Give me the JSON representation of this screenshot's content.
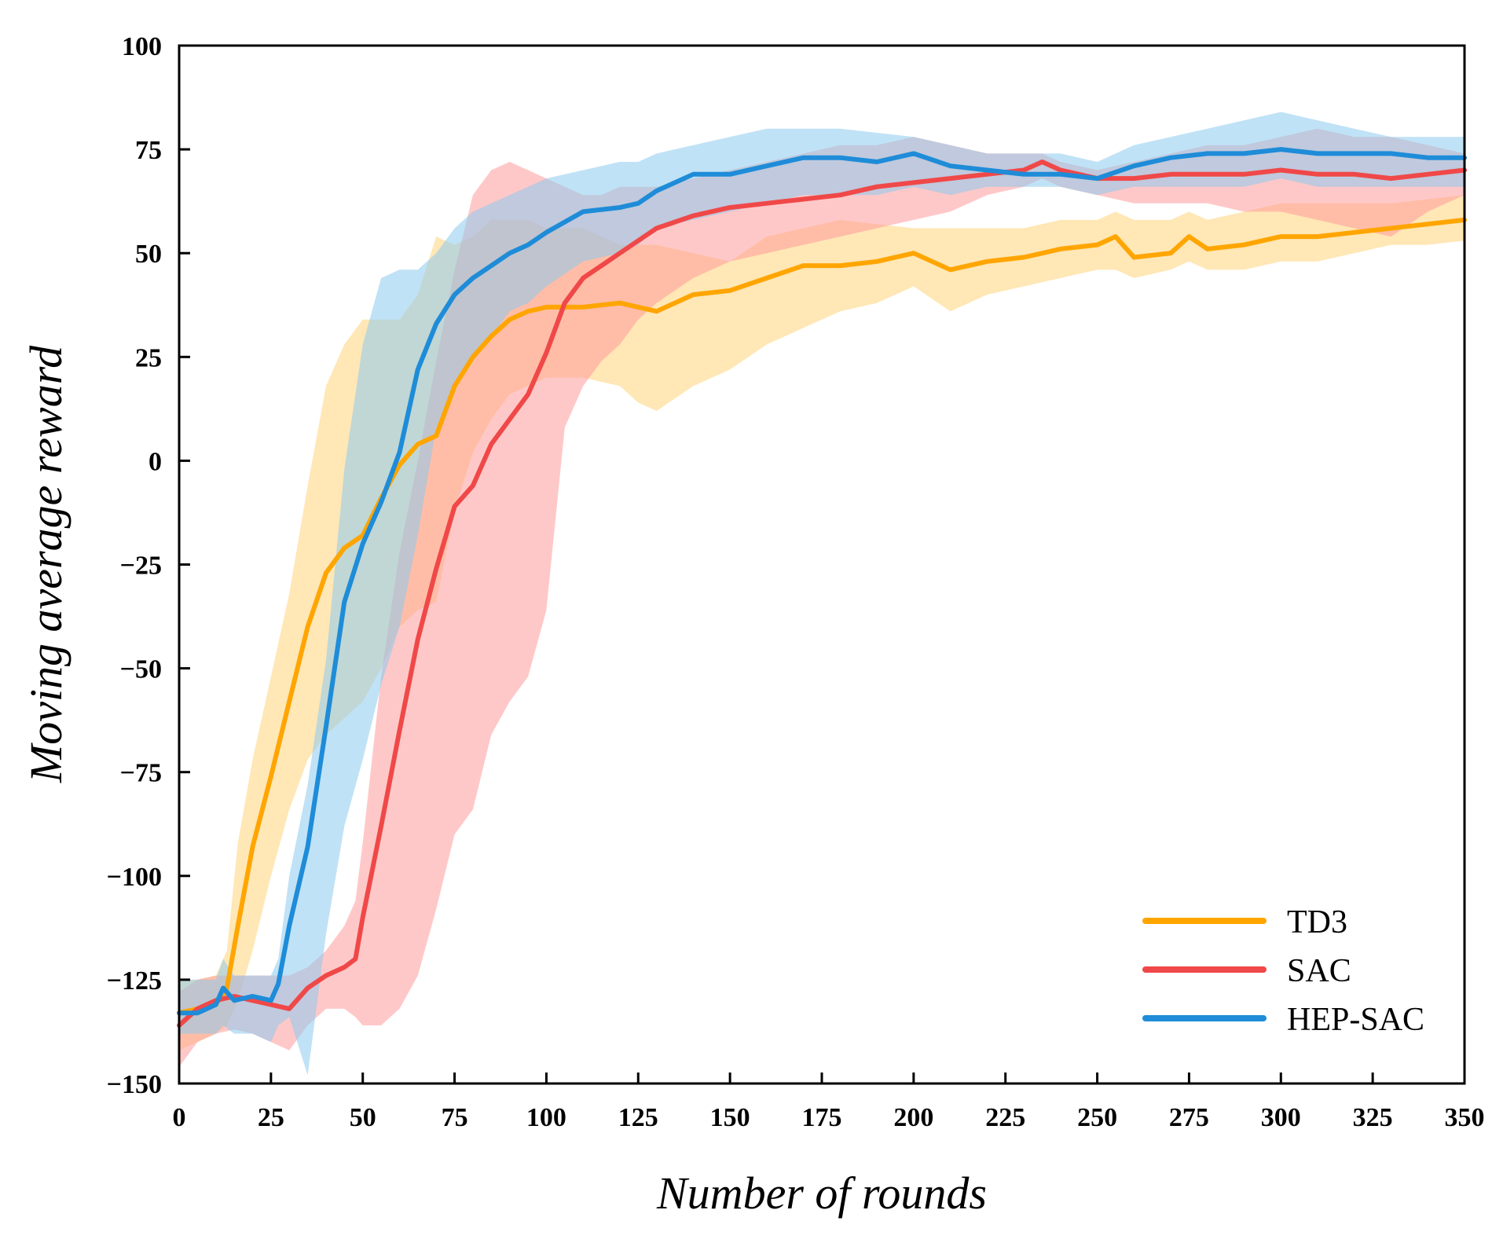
{
  "chart_data": {
    "type": "line",
    "title": "",
    "xlabel": "Number of rounds",
    "ylabel": "Moving average reward",
    "xlim": [
      0,
      350
    ],
    "ylim": [
      -150,
      100
    ],
    "xticks": [
      0,
      25,
      50,
      75,
      100,
      125,
      150,
      175,
      200,
      225,
      250,
      275,
      300,
      325,
      350
    ],
    "yticks": [
      -150,
      -125,
      -100,
      -75,
      -50,
      -25,
      0,
      25,
      50,
      75,
      100
    ],
    "grid": false,
    "legend_position": "bottom-right",
    "series": [
      {
        "name": "TD3",
        "color": "#FFA500",
        "band_color": "#FFD37A",
        "x": [
          0,
          5,
          10,
          13,
          16,
          20,
          25,
          30,
          35,
          40,
          45,
          50,
          55,
          60,
          65,
          70,
          75,
          80,
          85,
          90,
          95,
          100,
          110,
          120,
          125,
          130,
          140,
          150,
          160,
          170,
          180,
          190,
          200,
          210,
          220,
          230,
          240,
          250,
          255,
          260,
          270,
          275,
          280,
          290,
          300,
          310,
          320,
          330,
          340,
          350
        ],
        "values": [
          -133,
          -132,
          -131,
          -127,
          -112,
          -93,
          -76,
          -58,
          -40,
          -27,
          -21,
          -18,
          -9,
          -1,
          4,
          6,
          18,
          25,
          30,
          34,
          36,
          37,
          37,
          38,
          37,
          36,
          40,
          41,
          44,
          47,
          47,
          48,
          50,
          46,
          48,
          49,
          51,
          52,
          54,
          49,
          50,
          54,
          51,
          52,
          54,
          54,
          55,
          56,
          57,
          58
        ],
        "upper": [
          -125,
          -125,
          -124,
          -118,
          -92,
          -72,
          -52,
          -32,
          -6,
          18,
          28,
          34,
          34,
          34,
          40,
          54,
          52,
          54,
          58,
          58,
          58,
          56,
          56,
          52,
          52,
          52,
          50,
          48,
          54,
          56,
          58,
          57,
          56,
          56,
          56,
          56,
          58,
          58,
          60,
          58,
          58,
          60,
          58,
          60,
          62,
          62,
          62,
          62,
          63,
          64
        ],
        "lower": [
          -142,
          -140,
          -138,
          -136,
          -130,
          -118,
          -100,
          -84,
          -72,
          -66,
          -62,
          -58,
          -50,
          -40,
          -36,
          -34,
          -12,
          2,
          10,
          16,
          18,
          20,
          20,
          18,
          14,
          12,
          18,
          22,
          28,
          32,
          36,
          38,
          42,
          36,
          40,
          42,
          44,
          46,
          46,
          44,
          46,
          48,
          46,
          46,
          48,
          48,
          50,
          52,
          52,
          53
        ]
      },
      {
        "name": "SAC",
        "color": "#F04848",
        "band_color": "#FF9A9A",
        "x": [
          0,
          5,
          10,
          15,
          20,
          25,
          30,
          35,
          40,
          45,
          48,
          50,
          55,
          60,
          65,
          70,
          75,
          80,
          85,
          90,
          95,
          100,
          105,
          110,
          115,
          120,
          125,
          130,
          140,
          150,
          160,
          170,
          180,
          190,
          200,
          210,
          220,
          230,
          235,
          240,
          250,
          260,
          270,
          280,
          290,
          300,
          310,
          320,
          330,
          340,
          350
        ],
        "values": [
          -136,
          -132,
          -130,
          -129,
          -130,
          -131,
          -132,
          -127,
          -124,
          -122,
          -120,
          -110,
          -88,
          -65,
          -43,
          -26,
          -11,
          -6,
          4,
          10,
          16,
          26,
          38,
          44,
          47,
          50,
          53,
          56,
          59,
          61,
          62,
          63,
          64,
          66,
          67,
          68,
          69,
          70,
          72,
          70,
          68,
          68,
          69,
          69,
          69,
          70,
          69,
          69,
          68,
          69,
          70
        ],
        "upper": [
          -128,
          -125,
          -124,
          -124,
          -124,
          -124,
          -124,
          -122,
          -118,
          -112,
          -106,
          -92,
          -52,
          -22,
          0,
          24,
          46,
          64,
          70,
          72,
          70,
          68,
          66,
          64,
          64,
          66,
          66,
          66,
          68,
          70,
          72,
          74,
          76,
          76,
          78,
          76,
          74,
          74,
          74,
          72,
          70,
          72,
          74,
          76,
          76,
          78,
          80,
          78,
          78,
          76,
          74
        ],
        "lower": [
          -146,
          -140,
          -138,
          -137,
          -138,
          -140,
          -142,
          -136,
          -132,
          -132,
          -134,
          -136,
          -136,
          -132,
          -124,
          -108,
          -90,
          -84,
          -66,
          -58,
          -52,
          -36,
          8,
          18,
          24,
          28,
          34,
          38,
          44,
          48,
          50,
          52,
          54,
          56,
          58,
          60,
          64,
          66,
          68,
          66,
          64,
          62,
          62,
          62,
          60,
          60,
          58,
          56,
          54,
          60,
          64
        ]
      },
      {
        "name": "HEP-SAC",
        "color": "#1E8CD8",
        "band_color": "#8CCBEF",
        "x": [
          0,
          5,
          10,
          12,
          15,
          20,
          25,
          27,
          30,
          35,
          40,
          45,
          50,
          55,
          60,
          65,
          70,
          75,
          80,
          85,
          90,
          95,
          100,
          110,
          120,
          125,
          130,
          140,
          150,
          160,
          170,
          180,
          190,
          200,
          210,
          220,
          230,
          240,
          250,
          260,
          270,
          280,
          290,
          300,
          310,
          320,
          330,
          340,
          350
        ],
        "values": [
          -133,
          -133,
          -131,
          -127,
          -130,
          -129,
          -130,
          -126,
          -112,
          -93,
          -64,
          -34,
          -20,
          -10,
          2,
          22,
          33,
          40,
          44,
          47,
          50,
          52,
          55,
          60,
          61,
          62,
          65,
          69,
          69,
          71,
          73,
          73,
          72,
          74,
          71,
          70,
          69,
          69,
          68,
          71,
          73,
          74,
          74,
          75,
          74,
          74,
          74,
          73,
          73
        ],
        "upper": [
          -125,
          -125,
          -125,
          -120,
          -124,
          -124,
          -124,
          -120,
          -100,
          -78,
          -48,
          -2,
          28,
          44,
          46,
          46,
          50,
          56,
          60,
          62,
          64,
          66,
          68,
          70,
          72,
          72,
          74,
          76,
          78,
          80,
          80,
          80,
          79,
          78,
          76,
          74,
          74,
          74,
          72,
          76,
          78,
          80,
          82,
          84,
          82,
          80,
          78,
          78,
          78
        ],
        "lower": [
          -138,
          -138,
          -138,
          -136,
          -138,
          -138,
          -140,
          -136,
          -134,
          -148,
          -114,
          -88,
          -72,
          -54,
          -40,
          -18,
          8,
          18,
          24,
          30,
          36,
          38,
          42,
          48,
          50,
          52,
          56,
          58,
          60,
          62,
          64,
          64,
          64,
          66,
          64,
          66,
          66,
          66,
          64,
          66,
          66,
          66,
          66,
          68,
          66,
          66,
          66,
          66,
          66
        ]
      }
    ]
  }
}
